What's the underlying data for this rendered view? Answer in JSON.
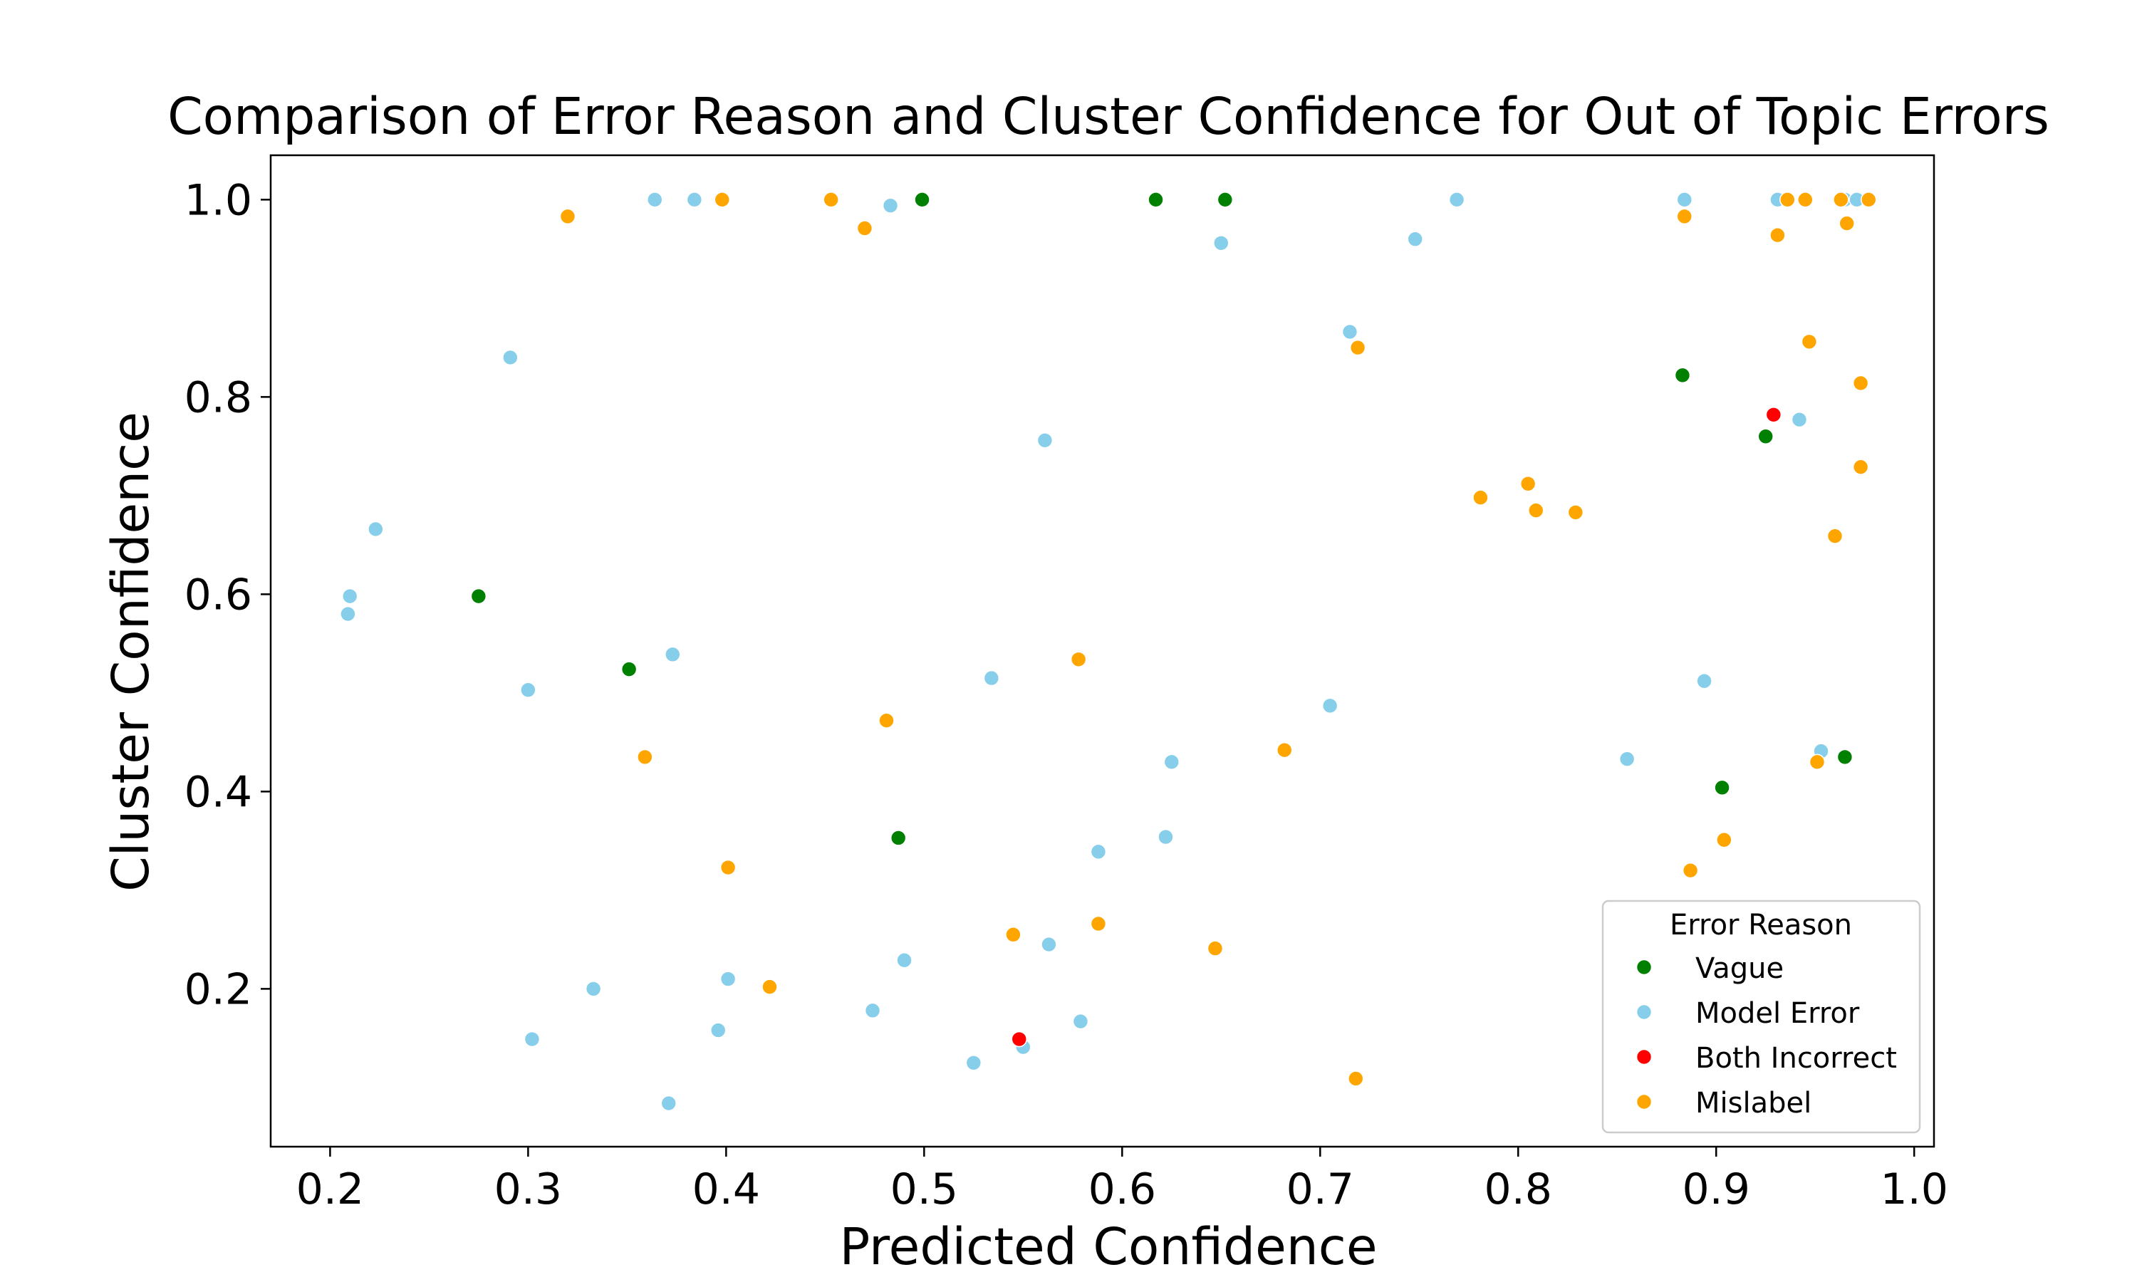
{
  "chart_data": {
    "type": "scatter",
    "title": "Comparison of Error Reason and Cluster Confidence for Out of Topic Errors",
    "xlabel": "Predicted Confidence",
    "ylabel": "Cluster Confidence",
    "xlim": [
      0.17,
      1.01
    ],
    "ylim": [
      0.04,
      1.045
    ],
    "xticks": [
      0.2,
      0.3,
      0.4,
      0.5,
      0.6,
      0.7,
      0.8,
      0.9,
      1.0
    ],
    "xtick_labels": [
      "0.2",
      "0.3",
      "0.4",
      "0.5",
      "0.6",
      "0.7",
      "0.8",
      "0.9",
      "1.0"
    ],
    "yticks": [
      0.2,
      0.4,
      0.6,
      0.8,
      1.0
    ],
    "ytick_labels": [
      "0.2",
      "0.4",
      "0.6",
      "0.8",
      "1.0"
    ],
    "grid": false,
    "legend": {
      "title": "Error Reason",
      "placement": "lower-right"
    },
    "series": [
      {
        "name": "Vague",
        "color": "#008000",
        "points": [
          [
            0.499,
            1.0
          ],
          [
            0.617,
            1.0
          ],
          [
            0.652,
            1.0
          ],
          [
            0.275,
            0.598
          ],
          [
            0.351,
            0.524
          ],
          [
            0.487,
            0.353
          ],
          [
            0.883,
            0.822
          ],
          [
            0.925,
            0.76
          ],
          [
            0.903,
            0.404
          ],
          [
            0.965,
            0.435
          ]
        ]
      },
      {
        "name": "Model Error",
        "color": "#87CEEB",
        "points": [
          [
            0.364,
            1.0
          ],
          [
            0.384,
            1.0
          ],
          [
            0.483,
            0.994
          ],
          [
            0.65,
            0.956
          ],
          [
            0.769,
            1.0
          ],
          [
            0.748,
            0.96
          ],
          [
            0.884,
            1.0
          ],
          [
            0.931,
            1.0
          ],
          [
            0.965,
            1.0
          ],
          [
            0.971,
            1.0
          ],
          [
            0.291,
            0.84
          ],
          [
            0.223,
            0.666
          ],
          [
            0.21,
            0.598
          ],
          [
            0.209,
            0.58
          ],
          [
            0.561,
            0.756
          ],
          [
            0.715,
            0.866
          ],
          [
            0.942,
            0.777
          ],
          [
            0.3,
            0.503
          ],
          [
            0.373,
            0.539
          ],
          [
            0.534,
            0.515
          ],
          [
            0.705,
            0.487
          ],
          [
            0.625,
            0.43
          ],
          [
            0.894,
            0.512
          ],
          [
            0.855,
            0.433
          ],
          [
            0.953,
            0.441
          ],
          [
            0.622,
            0.354
          ],
          [
            0.588,
            0.339
          ],
          [
            0.49,
            0.229
          ],
          [
            0.563,
            0.245
          ],
          [
            0.401,
            0.21
          ],
          [
            0.333,
            0.2
          ],
          [
            0.474,
            0.178
          ],
          [
            0.396,
            0.158
          ],
          [
            0.302,
            0.149
          ],
          [
            0.579,
            0.167
          ],
          [
            0.525,
            0.125
          ],
          [
            0.55,
            0.141
          ],
          [
            0.371,
            0.084
          ]
        ]
      },
      {
        "name": "Both Incorrect",
        "color": "#FF0000",
        "points": [
          [
            0.929,
            0.782
          ],
          [
            0.548,
            0.149
          ]
        ]
      },
      {
        "name": "Mislabel",
        "color": "#FFA500",
        "points": [
          [
            0.32,
            0.983
          ],
          [
            0.398,
            1.0
          ],
          [
            0.453,
            1.0
          ],
          [
            0.47,
            0.971
          ],
          [
            0.884,
            0.983
          ],
          [
            0.931,
            0.964
          ],
          [
            0.936,
            1.0
          ],
          [
            0.945,
            1.0
          ],
          [
            0.963,
            1.0
          ],
          [
            0.966,
            0.976
          ],
          [
            0.977,
            1.0
          ],
          [
            0.719,
            0.85
          ],
          [
            0.947,
            0.856
          ],
          [
            0.973,
            0.814
          ],
          [
            0.781,
            0.698
          ],
          [
            0.805,
            0.712
          ],
          [
            0.809,
            0.685
          ],
          [
            0.829,
            0.683
          ],
          [
            0.973,
            0.729
          ],
          [
            0.96,
            0.659
          ],
          [
            0.578,
            0.534
          ],
          [
            0.481,
            0.472
          ],
          [
            0.359,
            0.435
          ],
          [
            0.682,
            0.442
          ],
          [
            0.951,
            0.43
          ],
          [
            0.904,
            0.351
          ],
          [
            0.887,
            0.32
          ],
          [
            0.401,
            0.323
          ],
          [
            0.588,
            0.266
          ],
          [
            0.545,
            0.255
          ],
          [
            0.647,
            0.241
          ],
          [
            0.422,
            0.202
          ],
          [
            0.718,
            0.109
          ]
        ]
      }
    ]
  }
}
